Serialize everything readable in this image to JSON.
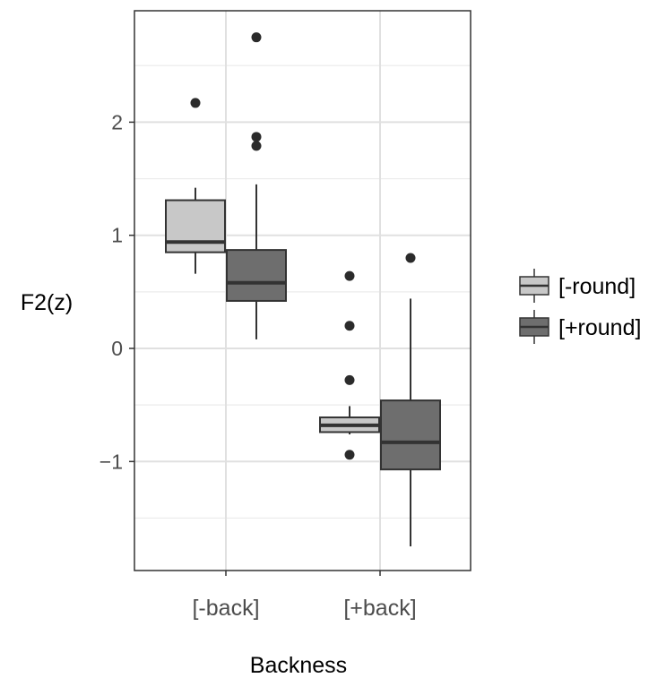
{
  "chart_data": {
    "type": "boxplot",
    "title": "",
    "xlabel": "Backness",
    "ylabel": "F2(z)",
    "ylim": [
      -1.95,
      3.0
    ],
    "yticks": [
      -1,
      0,
      1,
      2
    ],
    "ytick_labels": [
      "−1",
      "0",
      "1",
      "2"
    ],
    "categories": [
      "[-back]",
      "[+back]"
    ],
    "grid": true,
    "legend_position": "right",
    "series": [
      {
        "name": "[-round]",
        "color": "#c8c8c8",
        "boxes": [
          {
            "category": "[-back]",
            "whisker_low": 0.66,
            "q1": 0.85,
            "median": 0.94,
            "q3": 1.31,
            "whisker_high": 1.42,
            "outliers": [
              2.17
            ]
          },
          {
            "category": "[+back]",
            "whisker_low": -0.76,
            "q1": -0.74,
            "median": -0.68,
            "q3": -0.61,
            "whisker_high": -0.51,
            "outliers": [
              0.64,
              0.2,
              -0.28,
              -0.94
            ]
          }
        ]
      },
      {
        "name": "[+round]",
        "color": "#6e6e6e",
        "boxes": [
          {
            "category": "[-back]",
            "whisker_low": 0.08,
            "q1": 0.42,
            "median": 0.58,
            "q3": 0.87,
            "whisker_high": 1.45,
            "outliers": [
              2.75,
              1.87,
              1.79
            ]
          },
          {
            "category": "[+back]",
            "whisker_low": -1.75,
            "q1": -1.07,
            "median": -0.83,
            "q3": -0.46,
            "whisker_high": 0.44,
            "outliers": [
              0.8
            ]
          }
        ]
      }
    ]
  }
}
